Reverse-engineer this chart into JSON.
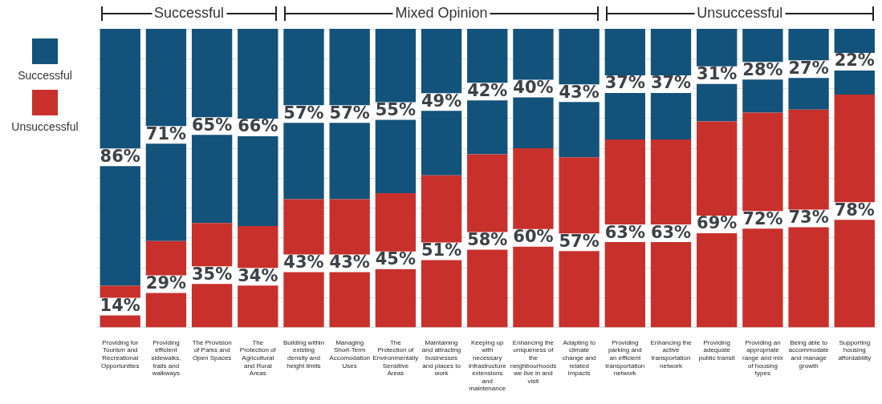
{
  "chart_data": {
    "type": "bar",
    "stacked": true,
    "categories": [
      "Providing for Tourism and Recreational Opportunities",
      "Providing efficient sidewalks, trails and walkways",
      "The Provision of Parks and Open Spaces",
      "The Protection of Agricultural and Rural Areas",
      "Building within existing density and height limits",
      "Managing Short-Term Accomodation Uses",
      "The Protection of Environmentally Sensitive Areas",
      "Maintaining and attracting businesses and places to work",
      "Keeping up with necessary infrastructure extensions and maintenance",
      "Enhancing the uniqueness of the neighbourhoods we live in and visit",
      "Adapting to climate change and related impacts",
      "Providing parking and an efficient transportation network",
      "Enhancing the active transportation network",
      "Providing adequate public transit",
      "Providing an appropriate range and mix of housing types",
      "Being able to accommodate and manage growth",
      "Supporting housing affordability"
    ],
    "series": [
      {
        "name": "Unsuccessful",
        "color": "#c8302c",
        "values": [
          14,
          29,
          35,
          34,
          43,
          43,
          45,
          51,
          58,
          60,
          57,
          63,
          63,
          69,
          72,
          73,
          78
        ],
        "value_labels": [
          "14%",
          "29%",
          "35%",
          "34%",
          "43%",
          "43%",
          "45%",
          "51%",
          "58%",
          "60%",
          "57%",
          "63%",
          "63%",
          "69%",
          "72%",
          "73%",
          "78%"
        ]
      },
      {
        "name": "Successful",
        "color": "#13527a",
        "values": [
          86,
          71,
          65,
          66,
          57,
          57,
          55,
          49,
          42,
          40,
          43,
          37,
          37,
          31,
          28,
          27,
          22
        ],
        "value_labels": [
          "86%",
          "71%",
          "65%",
          "66%",
          "57%",
          "57%",
          "55%",
          "49%",
          "42%",
          "40%",
          "43%",
          "37%",
          "37%",
          "31%",
          "28%",
          "27%",
          "22%"
        ]
      }
    ],
    "ylim": [
      0,
      100
    ],
    "yticks": [
      0,
      10,
      20,
      30,
      40,
      50,
      60,
      70,
      80,
      90,
      100
    ],
    "grid": "y",
    "tick_labels": "x",
    "legend": "left",
    "annotations": [
      "Successful",
      "Mixed Opinion",
      "Unsuccessful"
    ]
  }
}
